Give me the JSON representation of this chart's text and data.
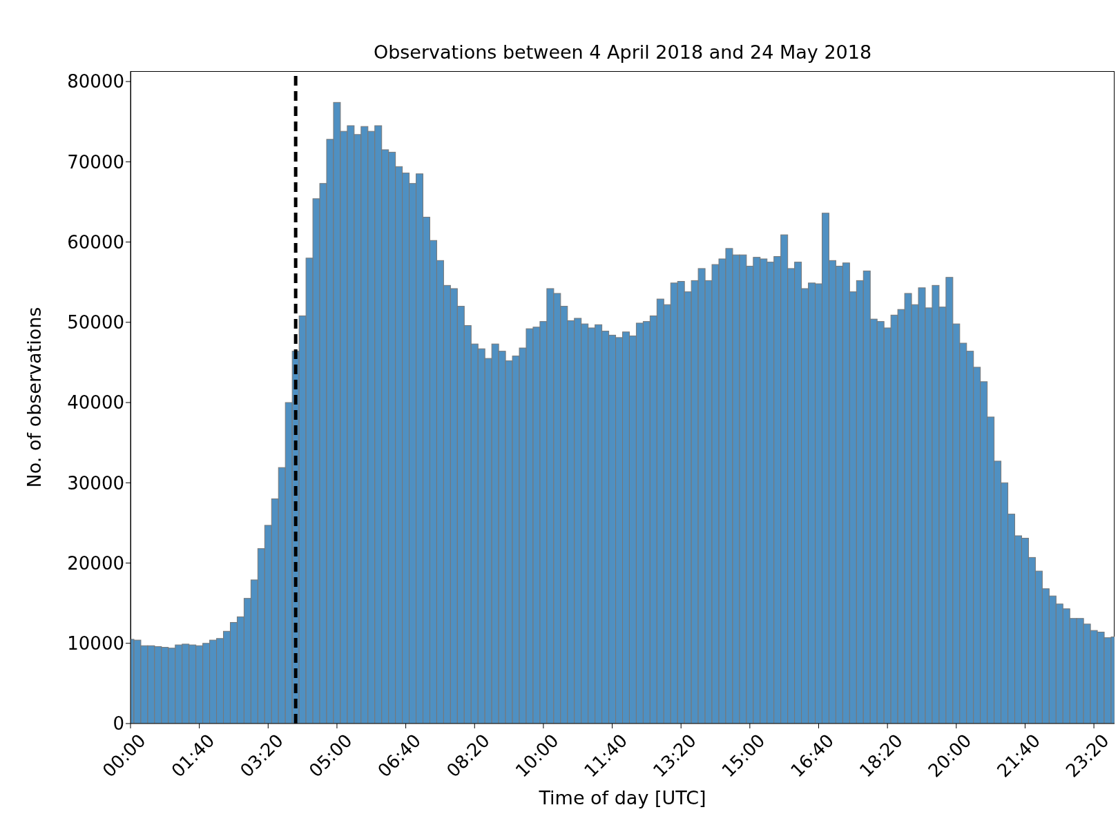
{
  "chart_data": {
    "type": "histogram",
    "title": "Observations between 4 April 2018 and 24 May 2018",
    "xlabel": "Time of day [UTC]",
    "ylabel": "No. of observations",
    "color": "#4f90c2",
    "bins": [
      0,
      0.0833,
      0.25,
      0.4167,
      0.5833,
      0.75,
      0.9167,
      1.0833,
      1.25,
      1.4167,
      1.5833,
      1.75,
      1.9167,
      2.0833,
      2.25,
      2.4167,
      2.5833,
      2.75,
      2.9167,
      3.0833,
      3.25,
      3.4167,
      3.5833,
      3.75,
      3.9167,
      4.0833,
      4.25,
      4.4167,
      4.5833,
      4.75,
      4.9167,
      5.0833,
      5.25,
      5.4167,
      5.5833,
      5.75,
      5.9167,
      6.0833,
      6.25,
      6.4167,
      6.5833,
      6.75,
      6.9167,
      7.0833,
      7.25,
      7.4167,
      7.5833,
      7.75,
      7.9167,
      8.0833,
      8.25,
      8.4167,
      8.5833,
      8.75,
      8.9167,
      9.0833,
      9.25,
      9.4167,
      9.5833,
      9.75,
      9.9167,
      10.0833,
      10.25,
      10.4167,
      10.5833,
      10.75,
      10.9167,
      11.0833,
      11.25,
      11.4167,
      11.5833,
      11.75,
      11.9167,
      12.0833,
      12.25,
      12.4167,
      12.5833,
      12.75,
      12.9167,
      13.0833,
      13.25,
      13.4167,
      13.5833,
      13.75,
      13.9167,
      14.0833,
      14.25,
      14.4167,
      14.5833,
      14.75,
      14.9167,
      15.0833,
      15.25,
      15.4167,
      15.5833,
      15.75,
      15.9167,
      16.0833,
      16.25,
      16.4167,
      16.5833,
      16.75,
      16.9167,
      17.0833,
      17.25,
      17.4167,
      17.5833,
      17.75,
      17.9167,
      18.0833,
      18.25,
      18.4167,
      18.5833,
      18.75,
      18.9167,
      19.0833,
      19.25,
      19.4167,
      19.5833,
      19.75,
      19.9167,
      20.0833,
      20.25,
      20.4167,
      20.5833,
      20.75,
      20.9167,
      21.0833,
      21.25,
      21.4167,
      21.5833,
      21.75,
      21.9167,
      22.0833,
      22.25,
      22.4167,
      22.5833,
      22.75,
      22.9167,
      23.0833,
      23.25,
      23.4167,
      23.5833,
      23.75,
      23.8333
    ],
    "values": [
      10500,
      10400,
      9700,
      9700,
      9600,
      9500,
      9400,
      9800,
      9900,
      9800,
      9700,
      10000,
      10400,
      10600,
      11500,
      12600,
      13300,
      15600,
      17900,
      21800,
      24700,
      28000,
      31900,
      40000,
      46400,
      50800,
      58000,
      65400,
      67300,
      72800,
      77400,
      73800,
      74500,
      73400,
      74400,
      73800,
      74500,
      71500,
      71200,
      69400,
      68600,
      67300,
      68500,
      63100,
      60200,
      57700,
      54600,
      54200,
      52000,
      49600,
      47300,
      46700,
      45500,
      47300,
      46400,
      45200,
      45800,
      46800,
      49200,
      49400,
      50100,
      54200,
      53600,
      52000,
      50200,
      50500,
      49800,
      49300,
      49700,
      48900,
      48400,
      48100,
      48800,
      48300,
      49900,
      50100,
      50800,
      52900,
      52200,
      54900,
      55100,
      53800,
      55200,
      56700,
      55200,
      57200,
      57900,
      59200,
      58400,
      58400,
      57000,
      58100,
      57900,
      57500,
      58200,
      60900,
      56700,
      57500,
      54200,
      54900,
      54800,
      63600,
      57700,
      57000,
      57400,
      53800,
      55200,
      56400,
      50400,
      50100,
      49300,
      50900,
      51600,
      53600,
      52200,
      54300,
      51800,
      54600,
      51900,
      55600,
      49800,
      47400,
      46400,
      44400,
      42600,
      38200,
      32700,
      30000,
      26100,
      23400,
      23100,
      20700,
      19000,
      16800,
      15900,
      14900,
      14300,
      13100,
      13100,
      12400,
      11600,
      11400,
      10700,
      10800
    ],
    "xlim": [
      0,
      23.8333
    ],
    "xticks": [
      {
        "value": 0,
        "label": "00:00"
      },
      {
        "value": 1.6667,
        "label": "01:40"
      },
      {
        "value": 3.3333,
        "label": "03:20"
      },
      {
        "value": 5,
        "label": "05:00"
      },
      {
        "value": 6.6667,
        "label": "06:40"
      },
      {
        "value": 8.3333,
        "label": "08:20"
      },
      {
        "value": 10,
        "label": "10:00"
      },
      {
        "value": 11.6667,
        "label": "11:40"
      },
      {
        "value": 13.3333,
        "label": "13:20"
      },
      {
        "value": 15,
        "label": "15:00"
      },
      {
        "value": 16.6667,
        "label": "16:40"
      },
      {
        "value": 18.3333,
        "label": "18:20"
      },
      {
        "value": 20,
        "label": "20:00"
      },
      {
        "value": 21.6667,
        "label": "21:40"
      },
      {
        "value": 23.3333,
        "label": "23:20"
      }
    ],
    "ylim": [
      0,
      81300
    ],
    "yticks": [
      0,
      10000,
      20000,
      30000,
      40000,
      50000,
      60000,
      70000,
      80000
    ],
    "ref_lines": [
      {
        "axis": "x",
        "value": 4,
        "color": "#000000",
        "line_style": "dashed"
      }
    ]
  }
}
